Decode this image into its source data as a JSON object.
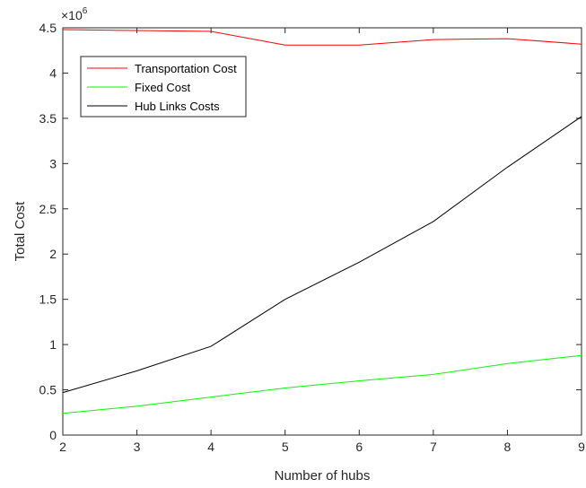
{
  "chart_data": {
    "type": "line",
    "xlabel": "Number of hubs",
    "ylabel": "Total Cost",
    "exponent_label": "×10",
    "exponent_power": "6",
    "xlim": [
      2,
      9
    ],
    "ylim": [
      0,
      4500000
    ],
    "x": [
      2,
      3,
      4,
      5,
      6,
      7,
      8,
      9
    ],
    "x_ticks": [
      "2",
      "3",
      "4",
      "5",
      "6",
      "7",
      "8",
      "9"
    ],
    "y_ticks": [
      "0",
      "0.5",
      "1",
      "1.5",
      "2",
      "2.5",
      "3",
      "3.5",
      "4",
      "4.5"
    ],
    "y_tick_values": [
      0,
      500000,
      1000000,
      1500000,
      2000000,
      2500000,
      3000000,
      3500000,
      4000000,
      4500000
    ],
    "grid": false,
    "legend_position": "top-left",
    "series": [
      {
        "name": "Transportation Cost",
        "color": "#ff0000",
        "values": [
          4480000,
          4470000,
          4460000,
          4310000,
          4310000,
          4370000,
          4380000,
          4320000
        ]
      },
      {
        "name": "Fixed Cost",
        "color": "#00ff00",
        "values": [
          240000,
          320000,
          420000,
          520000,
          600000,
          670000,
          790000,
          880000
        ]
      },
      {
        "name": "Hub Links Costs",
        "color": "#000000",
        "values": [
          470000,
          710000,
          980000,
          1500000,
          1910000,
          2360000,
          2960000,
          3520000
        ]
      }
    ]
  }
}
